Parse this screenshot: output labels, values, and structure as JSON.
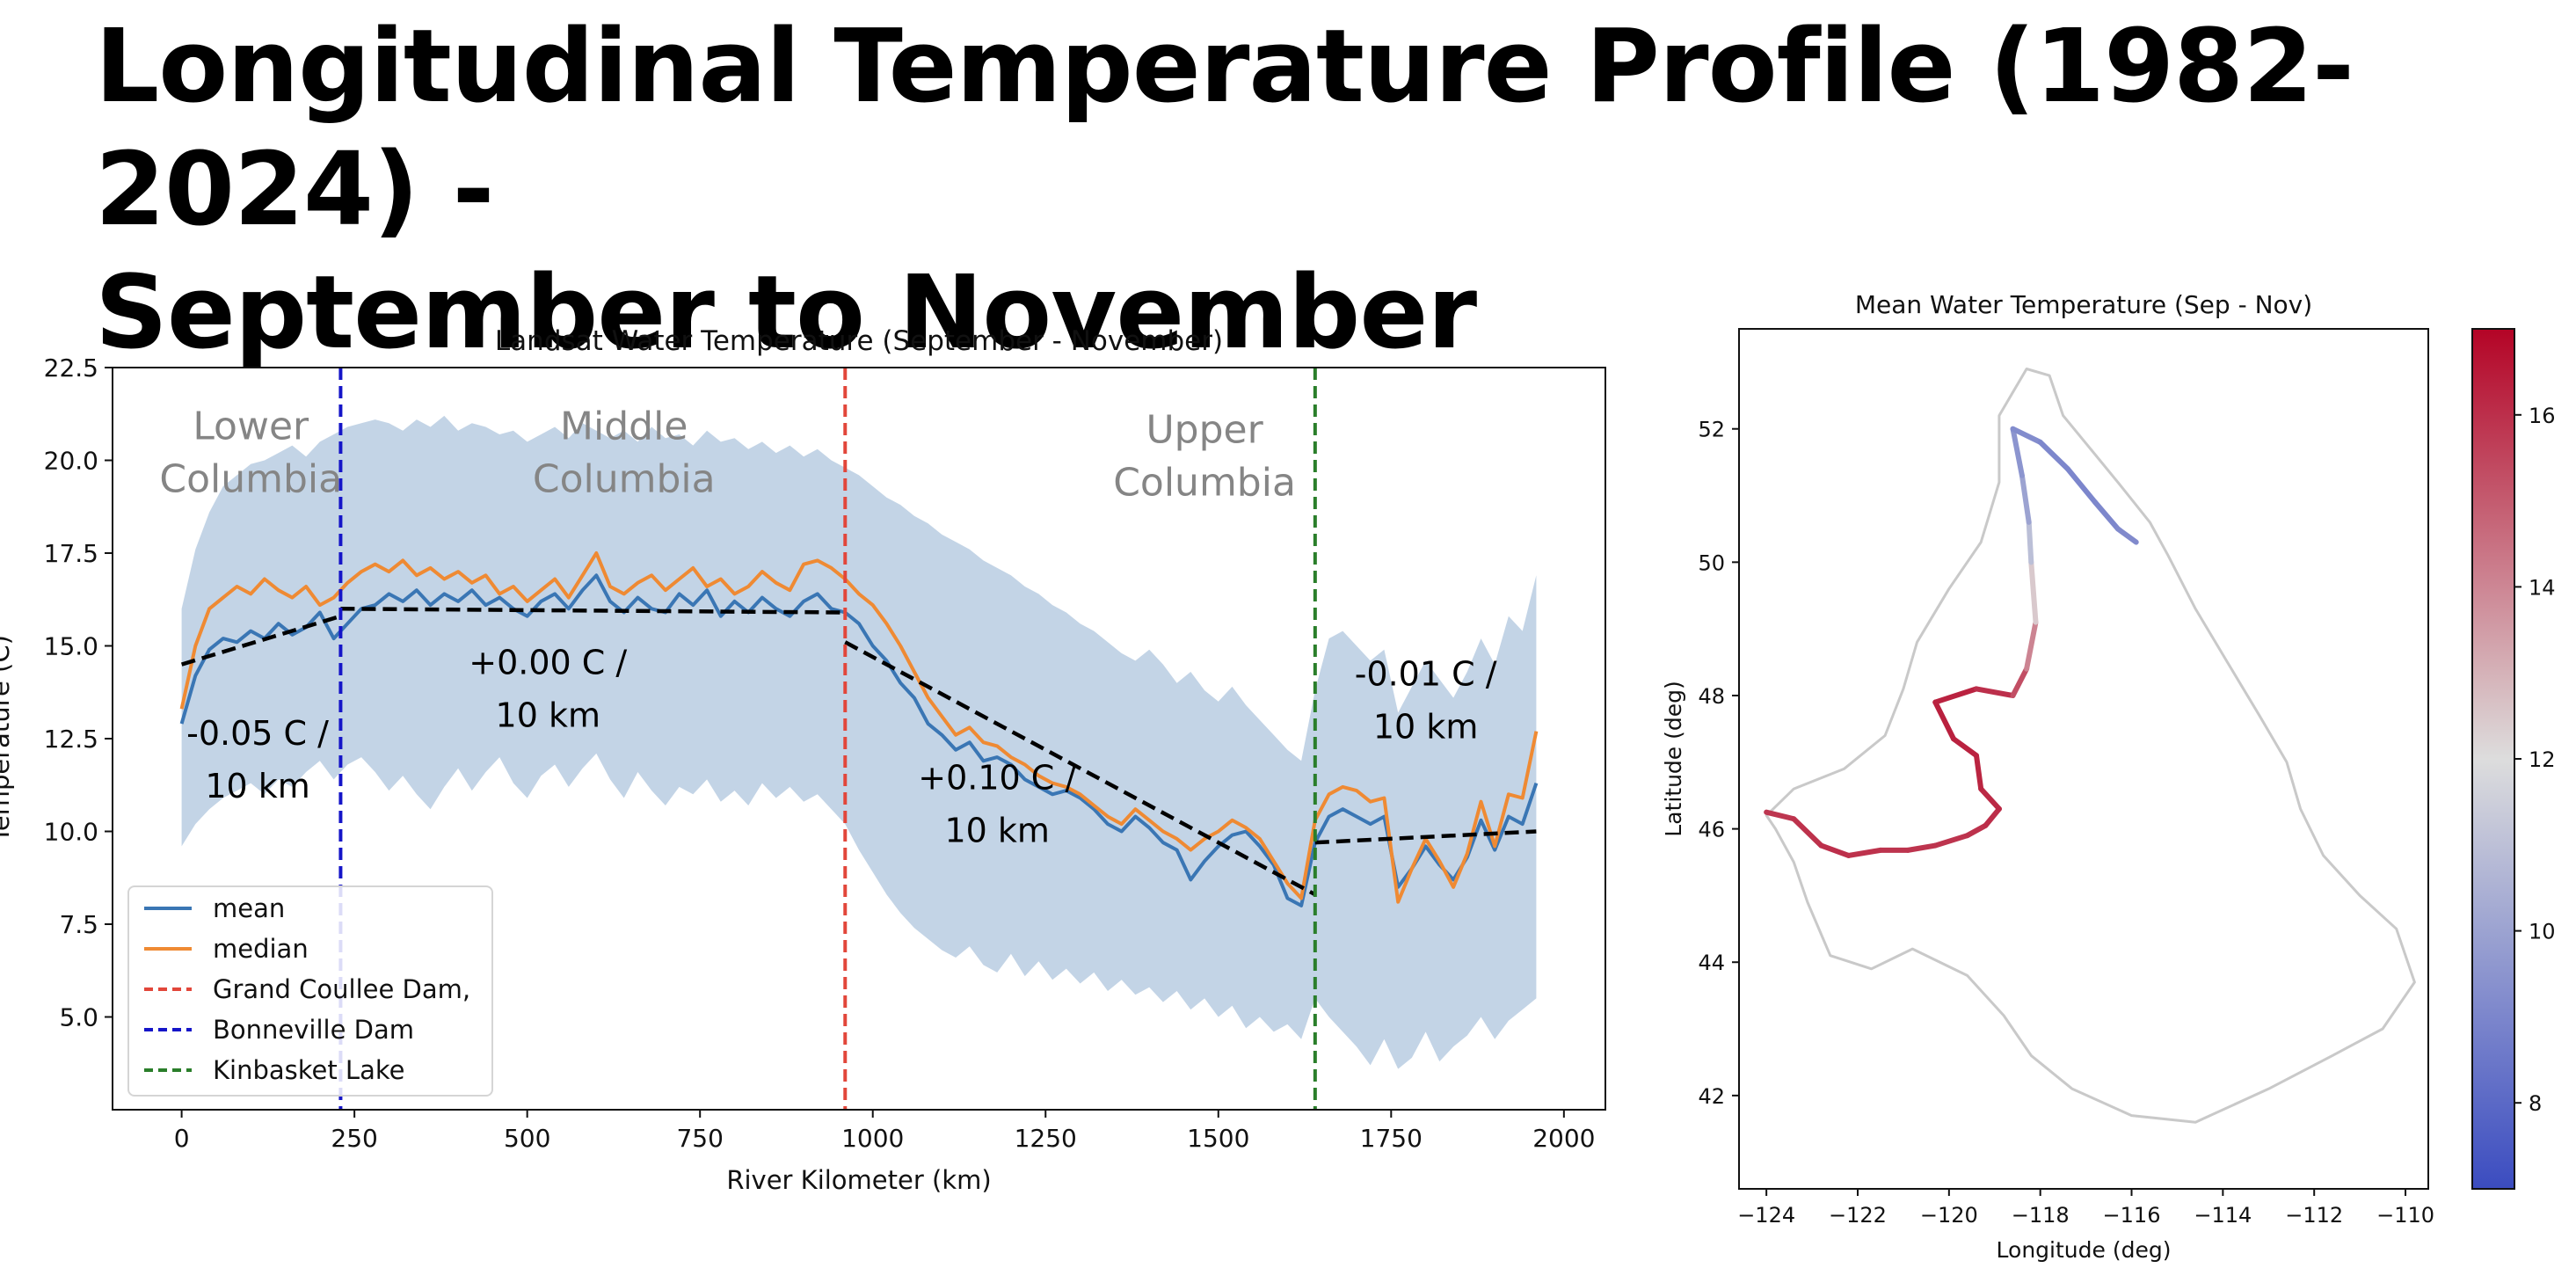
{
  "slide": {
    "title_line1": "Longitudinal Temperature Profile (1982-2024) -",
    "title_line2": "September to November"
  },
  "chart_data": [
    {
      "type": "line",
      "title": "Landsat Water Temperature (September - November)",
      "xlabel": "River Kilometer (km)",
      "ylabel": "Temperature (C)",
      "xlim": [
        -100,
        2060
      ],
      "ylim": [
        2.5,
        22.5
      ],
      "xticks": [
        0,
        250,
        500,
        750,
        1000,
        1250,
        1500,
        1750,
        2000
      ],
      "yticks": [
        5.0,
        7.5,
        10.0,
        12.5,
        15.0,
        17.5,
        20.0,
        22.5
      ],
      "grid": false,
      "legend_position": "lower-left",
      "x": [
        0,
        20,
        40,
        60,
        80,
        100,
        120,
        140,
        160,
        180,
        200,
        220,
        240,
        260,
        280,
        300,
        320,
        340,
        360,
        380,
        400,
        420,
        440,
        460,
        480,
        500,
        520,
        540,
        560,
        580,
        600,
        620,
        640,
        660,
        680,
        700,
        720,
        740,
        760,
        780,
        800,
        820,
        840,
        860,
        880,
        900,
        920,
        940,
        960,
        980,
        1000,
        1020,
        1040,
        1060,
        1080,
        1100,
        1120,
        1140,
        1160,
        1180,
        1200,
        1220,
        1240,
        1260,
        1280,
        1300,
        1320,
        1340,
        1360,
        1380,
        1400,
        1420,
        1440,
        1460,
        1480,
        1500,
        1520,
        1540,
        1560,
        1580,
        1600,
        1620,
        1640,
        1660,
        1680,
        1700,
        1720,
        1740,
        1760,
        1780,
        1800,
        1820,
        1840,
        1860,
        1880,
        1900,
        1920,
        1940,
        1960
      ],
      "series": [
        {
          "name": "mean",
          "color": "#3a76b4",
          "values": [
            12.9,
            14.2,
            14.9,
            15.2,
            15.1,
            15.4,
            15.2,
            15.6,
            15.3,
            15.5,
            15.9,
            15.2,
            15.6,
            16.0,
            16.1,
            16.4,
            16.2,
            16.5,
            16.1,
            16.4,
            16.2,
            16.5,
            16.1,
            16.3,
            16.0,
            15.8,
            16.2,
            16.4,
            16.0,
            16.5,
            16.9,
            16.2,
            15.9,
            16.3,
            16.0,
            15.9,
            16.4,
            16.1,
            16.5,
            15.8,
            16.2,
            15.9,
            16.3,
            16.0,
            15.8,
            16.2,
            16.4,
            16.0,
            15.9,
            15.6,
            15.0,
            14.6,
            14.0,
            13.6,
            12.9,
            12.6,
            12.2,
            12.4,
            11.9,
            12.0,
            11.8,
            11.4,
            11.2,
            11.0,
            11.1,
            10.9,
            10.6,
            10.2,
            10.0,
            10.4,
            10.1,
            9.7,
            9.5,
            8.7,
            9.2,
            9.6,
            9.9,
            10.0,
            9.6,
            9.1,
            8.2,
            8.0,
            9.7,
            10.4,
            10.6,
            10.4,
            10.2,
            10.4,
            8.5,
            9.0,
            9.6,
            9.1,
            8.7,
            9.3,
            10.3,
            9.5,
            10.4,
            10.2,
            11.3
          ]
        },
        {
          "name": "median",
          "color": "#ef8a33",
          "values": [
            13.3,
            15.0,
            16.0,
            16.3,
            16.6,
            16.4,
            16.8,
            16.5,
            16.3,
            16.6,
            16.1,
            16.3,
            16.7,
            17.0,
            17.2,
            17.0,
            17.3,
            16.9,
            17.1,
            16.8,
            17.0,
            16.7,
            16.9,
            16.4,
            16.6,
            16.2,
            16.5,
            16.8,
            16.3,
            16.9,
            17.5,
            16.6,
            16.4,
            16.7,
            16.9,
            16.5,
            16.8,
            17.1,
            16.6,
            16.8,
            16.4,
            16.6,
            17.0,
            16.7,
            16.5,
            17.2,
            17.3,
            17.1,
            16.8,
            16.4,
            16.1,
            15.6,
            15.0,
            14.3,
            13.6,
            13.1,
            12.6,
            12.8,
            12.4,
            12.3,
            12.0,
            11.8,
            11.5,
            11.3,
            11.2,
            11.0,
            10.7,
            10.4,
            10.2,
            10.6,
            10.3,
            10.0,
            9.8,
            9.5,
            9.8,
            10.0,
            10.3,
            10.1,
            9.8,
            9.2,
            8.6,
            8.2,
            10.3,
            11.0,
            11.2,
            11.1,
            10.8,
            10.9,
            8.1,
            9.0,
            9.8,
            9.2,
            8.5,
            9.4,
            10.8,
            9.6,
            11.0,
            10.9,
            12.7
          ]
        }
      ],
      "band": {
        "upper": [
          16.0,
          17.6,
          18.6,
          19.3,
          19.6,
          19.9,
          20.0,
          20.2,
          20.4,
          20.1,
          20.5,
          20.7,
          20.9,
          21.0,
          21.1,
          21.0,
          20.8,
          21.1,
          20.9,
          21.2,
          20.8,
          21.0,
          20.9,
          20.7,
          20.8,
          20.5,
          20.7,
          20.9,
          20.6,
          21.0,
          20.8,
          20.6,
          20.8,
          20.5,
          20.9,
          20.6,
          20.7,
          20.4,
          20.8,
          20.5,
          20.6,
          20.3,
          20.5,
          20.2,
          20.4,
          20.1,
          20.3,
          20.0,
          19.8,
          19.6,
          19.3,
          19.0,
          18.8,
          18.5,
          18.3,
          18.0,
          17.8,
          17.6,
          17.3,
          17.1,
          16.9,
          16.6,
          16.4,
          16.1,
          15.9,
          15.6,
          15.4,
          15.1,
          14.8,
          14.6,
          14.9,
          14.5,
          14.0,
          14.3,
          13.8,
          13.5,
          13.9,
          13.4,
          13.0,
          12.6,
          12.2,
          11.9,
          13.8,
          15.2,
          15.4,
          15.0,
          14.6,
          14.9,
          13.2,
          13.9,
          14.6,
          14.1,
          13.6,
          14.3,
          15.2,
          14.5,
          15.8,
          15.4,
          16.9
        ],
        "lower": [
          9.6,
          10.2,
          10.6,
          10.9,
          11.1,
          11.3,
          11.0,
          11.4,
          11.2,
          11.6,
          11.9,
          11.4,
          11.8,
          12.0,
          11.6,
          11.1,
          11.5,
          11.0,
          10.6,
          11.2,
          11.7,
          11.1,
          11.6,
          12.0,
          11.3,
          10.9,
          11.5,
          11.8,
          11.2,
          11.7,
          12.1,
          11.4,
          10.9,
          11.6,
          11.1,
          10.7,
          11.2,
          11.0,
          11.4,
          10.8,
          11.1,
          10.7,
          11.3,
          10.9,
          11.2,
          10.8,
          11.0,
          10.6,
          10.2,
          9.5,
          8.9,
          8.3,
          7.8,
          7.4,
          7.1,
          6.8,
          6.6,
          6.9,
          6.4,
          6.2,
          6.7,
          6.1,
          6.5,
          6.0,
          6.3,
          5.9,
          6.2,
          5.7,
          6.0,
          5.6,
          5.8,
          5.4,
          5.7,
          5.2,
          5.5,
          5.0,
          5.3,
          4.7,
          5.0,
          4.6,
          4.8,
          4.4,
          5.5,
          5.0,
          4.6,
          4.2,
          3.7,
          4.4,
          3.6,
          3.9,
          4.6,
          3.8,
          4.2,
          4.5,
          5.0,
          4.4,
          4.9,
          5.2,
          5.5
        ]
      },
      "vlines": [
        {
          "x": 230,
          "color": "#1515c8",
          "label": "Bonneville Dam"
        },
        {
          "x": 960,
          "color": "#e2463a",
          "label": "Grand Coullee Dam,"
        },
        {
          "x": 1640,
          "color": "#2a7e2a",
          "label": "Kinbasket Lake"
        }
      ],
      "legend": [
        {
          "label": "mean",
          "color": "#3a76b4",
          "dashed": false
        },
        {
          "label": "median",
          "color": "#ef8a33",
          "dashed": false
        },
        {
          "label": "Grand Coullee Dam,",
          "color": "#e2463a",
          "dashed": true
        },
        {
          "label": "Bonneville Dam",
          "color": "#1515c8",
          "dashed": true
        },
        {
          "label": "Kinbasket Lake",
          "color": "#2a7e2a",
          "dashed": true
        }
      ],
      "trends": [
        {
          "x": [
            0,
            230
          ],
          "y": [
            14.5,
            15.8
          ]
        },
        {
          "x": [
            230,
            960
          ],
          "y": [
            16.0,
            15.9
          ]
        },
        {
          "x": [
            960,
            1640
          ],
          "y": [
            15.1,
            8.3
          ]
        },
        {
          "x": [
            1640,
            1960
          ],
          "y": [
            9.7,
            10.0
          ]
        }
      ],
      "reach_labels": [
        {
          "line1": "Lower",
          "line2": "Columbia",
          "x": 100,
          "y": 20.0
        },
        {
          "line1": "Middle",
          "line2": "Columbia",
          "x": 640,
          "y": 20.0
        },
        {
          "line1": "Upper",
          "line2": "Columbia",
          "x": 1480,
          "y": 19.9
        }
      ],
      "trend_labels": [
        {
          "line1": "-0.05 C /",
          "line2": "10 km",
          "x": 110,
          "y": 12.1
        },
        {
          "line1": "+0.00 C /",
          "line2": "10 km",
          "x": 530,
          "y": 14.0
        },
        {
          "line1": "+0.10 C /",
          "line2": "10 km",
          "x": 1180,
          "y": 10.9
        },
        {
          "line1": "-0.01 C /",
          "line2": "10 km",
          "x": 1800,
          "y": 13.7
        }
      ]
    },
    {
      "type": "map",
      "title": "Mean Water Temperature (Sep - Nov)",
      "xlabel": "Longitude (deg)",
      "ylabel": "Latitude (deg)",
      "xlim": [
        -124.6,
        -109.5
      ],
      "ylim": [
        40.6,
        53.5
      ],
      "xticks": [
        -124,
        -122,
        -120,
        -118,
        -116,
        -114,
        -112,
        -110
      ],
      "yticks": [
        42,
        44,
        46,
        48,
        50,
        52
      ],
      "colormap": "coolwarm",
      "colorbar_range": [
        7.0,
        17.0
      ],
      "colorbar_ticks": [
        8,
        10,
        12,
        14,
        16
      ],
      "basin_outline": [
        [
          -118.3,
          52.9
        ],
        [
          -117.8,
          52.8
        ],
        [
          -117.5,
          52.2
        ],
        [
          -116.9,
          51.7
        ],
        [
          -116.3,
          51.2
        ],
        [
          -115.6,
          50.6
        ],
        [
          -115.2,
          50.1
        ],
        [
          -114.6,
          49.3
        ],
        [
          -113.9,
          48.5
        ],
        [
          -113.2,
          47.7
        ],
        [
          -112.6,
          47.0
        ],
        [
          -112.3,
          46.3
        ],
        [
          -111.8,
          45.6
        ],
        [
          -111.0,
          45.0
        ],
        [
          -110.2,
          44.5
        ],
        [
          -109.8,
          43.7
        ],
        [
          -110.5,
          43.0
        ],
        [
          -111.6,
          42.6
        ],
        [
          -113.0,
          42.1
        ],
        [
          -114.6,
          41.6
        ],
        [
          -116.0,
          41.7
        ],
        [
          -117.3,
          42.1
        ],
        [
          -118.2,
          42.6
        ],
        [
          -118.8,
          43.2
        ],
        [
          -119.6,
          43.8
        ],
        [
          -120.8,
          44.2
        ],
        [
          -121.7,
          43.9
        ],
        [
          -122.6,
          44.1
        ],
        [
          -123.1,
          44.9
        ],
        [
          -123.4,
          45.5
        ],
        [
          -123.8,
          46.0
        ],
        [
          -124.0,
          46.2
        ],
        [
          -123.4,
          46.6
        ],
        [
          -122.3,
          46.9
        ],
        [
          -121.4,
          47.4
        ],
        [
          -121.0,
          48.1
        ],
        [
          -120.7,
          48.8
        ],
        [
          -120.0,
          49.6
        ],
        [
          -119.3,
          50.3
        ],
        [
          -118.9,
          51.2
        ],
        [
          -118.9,
          52.2
        ],
        [
          -118.3,
          52.9
        ]
      ],
      "river_path": [
        [
          -124.0,
          46.25
        ],
        [
          -123.4,
          46.15
        ],
        [
          -122.8,
          45.75
        ],
        [
          -122.2,
          45.6
        ],
        [
          -121.5,
          45.68
        ],
        [
          -120.9,
          45.68
        ],
        [
          -120.3,
          45.75
        ],
        [
          -119.6,
          45.9
        ],
        [
          -119.2,
          46.05
        ],
        [
          -118.9,
          46.3
        ],
        [
          -119.3,
          46.6
        ],
        [
          -119.4,
          47.1
        ],
        [
          -119.9,
          47.35
        ],
        [
          -120.3,
          47.9
        ],
        [
          -119.4,
          48.1
        ],
        [
          -118.6,
          48.0
        ],
        [
          -118.3,
          48.4
        ],
        [
          -118.1,
          49.1
        ],
        [
          -118.2,
          50.0
        ],
        [
          -118.25,
          50.6
        ],
        [
          -118.4,
          51.3
        ],
        [
          -118.6,
          52.0
        ]
      ],
      "river_temps": [
        15.8,
        15.9,
        16.0,
        16.0,
        15.9,
        15.9,
        15.9,
        15.9,
        16.0,
        16.1,
        16.2,
        16.3,
        16.3,
        16.4,
        16.2,
        15.8,
        14.8,
        13.3,
        11.6,
        10.3,
        9.7,
        9.3
      ],
      "tributary_path": [
        [
          -118.6,
          52.0
        ],
        [
          -118.0,
          51.8
        ],
        [
          -117.4,
          51.4
        ],
        [
          -116.8,
          50.9
        ],
        [
          -116.3,
          50.5
        ],
        [
          -115.9,
          50.3
        ]
      ],
      "tributary_temps": [
        9.3,
        9.1,
        9.0,
        9.0,
        9.1,
        9.2
      ]
    }
  ]
}
